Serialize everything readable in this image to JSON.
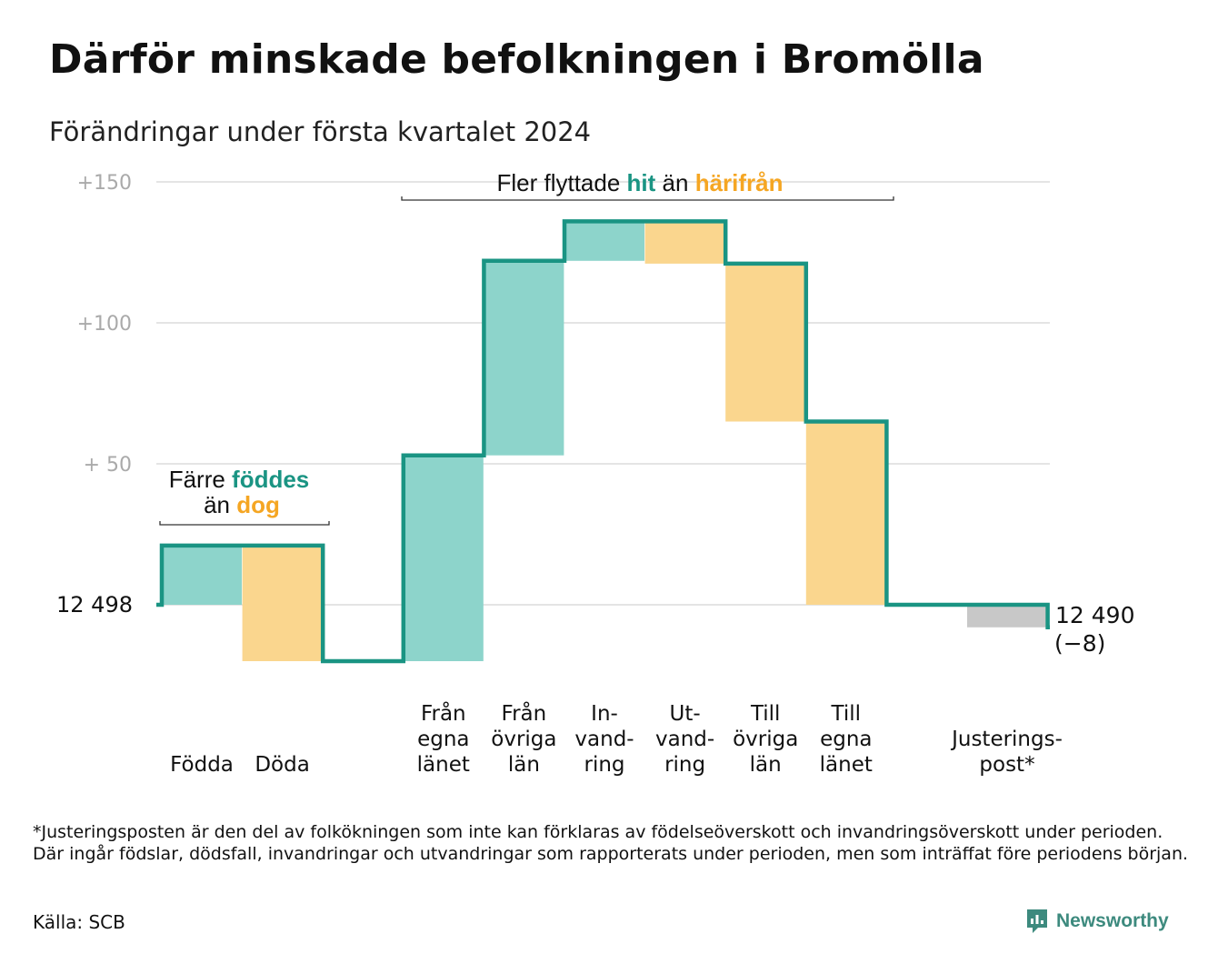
{
  "title": "Därför minskade befolkningen i Bromölla",
  "subtitle": "Förändringar under första kvartalet 2024",
  "colors": {
    "increase": "#8dd4cb",
    "decrease": "#fad68e",
    "adjustment": "#c8c8c8",
    "line": "#1a9483",
    "teal_text": "#1a9483",
    "orange_text": "#f5a623",
    "grid": "#e4e4e4"
  },
  "annotations": {
    "left": {
      "line1_a": "Färre",
      "line1_b": "föddes",
      "line2_a": "än",
      "line2_b": "dog"
    },
    "top": {
      "a": "Fler flyttade",
      "b": "hit",
      "c": "än",
      "d": "härifrån"
    }
  },
  "chart_data": {
    "type": "waterfall",
    "yticks": [
      {
        "value": 50,
        "label": "+  50"
      },
      {
        "value": 100,
        "label": "+100"
      },
      {
        "value": 150,
        "label": "+150"
      }
    ],
    "ylim": [
      -30,
      150
    ],
    "start": {
      "value": 0,
      "label": "12  498"
    },
    "end": {
      "value": -8,
      "label1": "12 490",
      "label2": "(−8)"
    },
    "steps": [
      {
        "label": [
          "Födda"
        ],
        "delta": 21,
        "kind": "increase"
      },
      {
        "label": [
          "Döda"
        ],
        "delta": -41,
        "kind": "decrease"
      },
      {
        "label": [],
        "delta": 0,
        "kind": "gap"
      },
      {
        "label": [
          "Från",
          "egna",
          "länet"
        ],
        "delta": 73,
        "kind": "increase"
      },
      {
        "label": [
          "Från",
          "övriga",
          "län"
        ],
        "delta": 69,
        "kind": "increase"
      },
      {
        "label": [
          "In-",
          "vand-",
          "ring"
        ],
        "delta": 14,
        "kind": "increase"
      },
      {
        "label": [
          "Ut-",
          "vand-",
          "ring"
        ],
        "delta": -15,
        "kind": "decrease"
      },
      {
        "label": [
          "Till",
          "övriga",
          "län"
        ],
        "delta": -56,
        "kind": "decrease"
      },
      {
        "label": [
          "Till",
          "egna",
          "länet"
        ],
        "delta": -65,
        "kind": "decrease"
      },
      {
        "label": [],
        "delta": 0,
        "kind": "gap"
      },
      {
        "label": [
          "Justerings-",
          "post*"
        ],
        "delta": -8,
        "kind": "adjustment"
      }
    ]
  },
  "footnote": "*Justeringsposten är den del av folkökningen som inte kan förklaras av födelseöverskott och invandringsöverskott under perioden. Där ingår födslar, dödsfall, invandringar och utvandringar som rapporterats under perioden, men som inträffat före periodens början.",
  "source": "Källa: SCB",
  "brand": "Newsworthy"
}
